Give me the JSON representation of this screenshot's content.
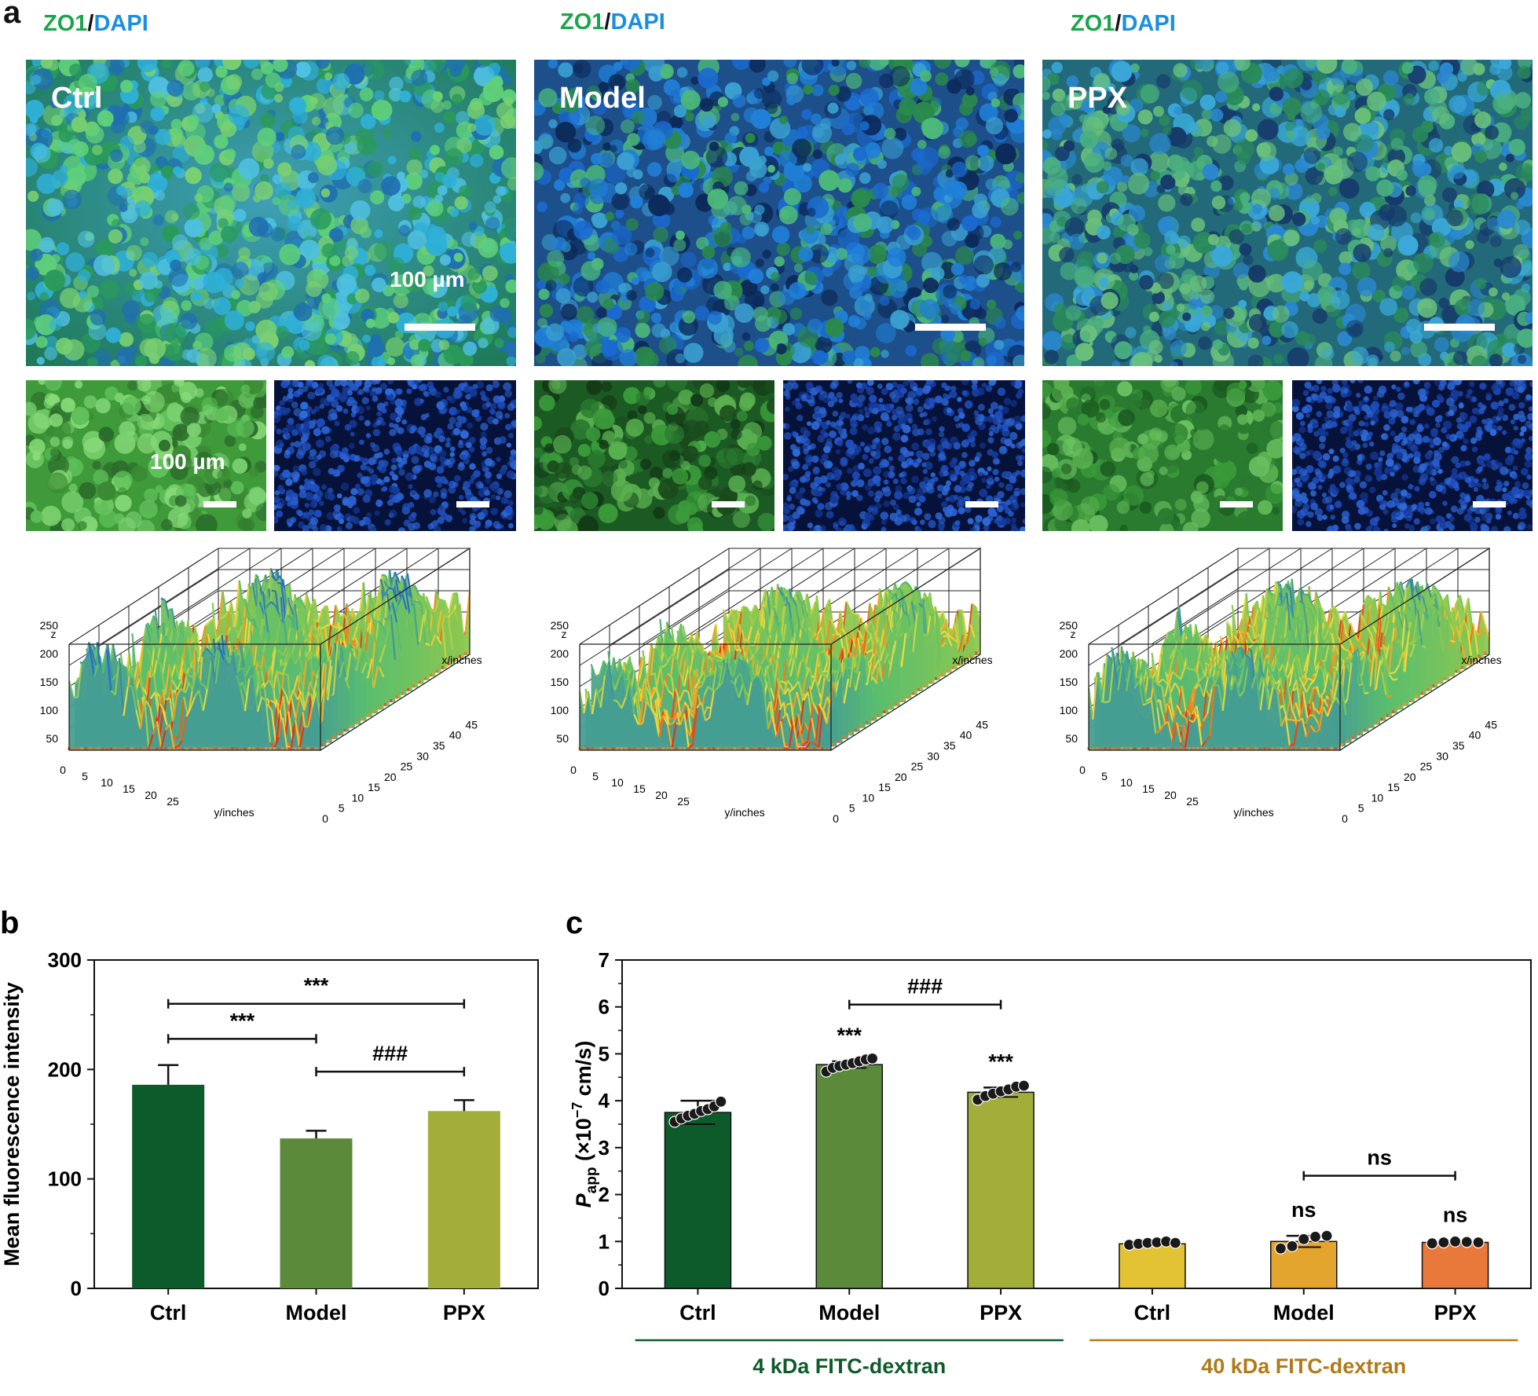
{
  "panel_a": {
    "letter": "a",
    "columns": [
      {
        "stain_zo1": "ZO1",
        "stain_sep": "/",
        "stain_dapi": "DAPI",
        "group": "Ctrl",
        "scale_text": "100 µm",
        "small_scale_text": "100 µm"
      },
      {
        "stain_zo1": "ZO1",
        "stain_sep": "/",
        "stain_dapi": "DAPI",
        "group": "Model"
      },
      {
        "stain_zo1": "ZO1",
        "stain_sep": "/",
        "stain_dapi": "DAPI",
        "group": "PPX"
      }
    ],
    "surface_axes": {
      "z_label": "z",
      "z_ticks": [
        "50",
        "100",
        "150",
        "200",
        "250"
      ],
      "x_label": "x/inches",
      "x_ticks": [
        "0",
        "5",
        "10",
        "15",
        "20",
        "25",
        "30",
        "35",
        "40",
        "45"
      ],
      "y_label": "y/inches",
      "y_ticks": [
        "0",
        "5",
        "10",
        "15",
        "20",
        "25"
      ]
    }
  },
  "chart_data": [
    {
      "id": "b",
      "letter": "b",
      "type": "bar",
      "title": "",
      "ylabel": "Mean fluorescence intensity",
      "xlabel": "",
      "ylim": [
        0,
        300
      ],
      "yticks": [
        "0",
        "100",
        "200",
        "300"
      ],
      "categories": [
        "Ctrl",
        "Model",
        "PPX"
      ],
      "values": [
        186,
        137,
        162
      ],
      "errors": [
        18,
        7,
        10
      ],
      "colors": [
        "#0d5a2a",
        "#5b8a3a",
        "#a3ad3a"
      ],
      "significance": [
        {
          "from": 0,
          "to": 2,
          "label": "***",
          "y": 260
        },
        {
          "from": 0,
          "to": 1,
          "label": "***",
          "y": 228
        },
        {
          "from": 1,
          "to": 2,
          "label": "###",
          "y": 198
        }
      ]
    },
    {
      "id": "c",
      "letter": "c",
      "type": "bar",
      "title": "",
      "ylabel_main": "P",
      "ylabel_sub": "app",
      "ylabel_rest": " (×10",
      "ylabel_sup": "−7",
      "ylabel_end": " cm/s)",
      "xlabel": "",
      "ylim": [
        0,
        7
      ],
      "yticks": [
        "0",
        "1",
        "2",
        "3",
        "4",
        "5",
        "6",
        "7"
      ],
      "categories": [
        "Ctrl",
        "Model",
        "PPX",
        "Ctrl",
        "Model",
        "PPX"
      ],
      "values": [
        3.75,
        4.77,
        4.18,
        0.95,
        1.0,
        0.98
      ],
      "errors": [
        0.25,
        0.07,
        0.1,
        0.03,
        0.12,
        0.03
      ],
      "colors": [
        "#0d5a2a",
        "#5b8a3a",
        "#a3ad3a",
        "#e3c234",
        "#e4a52f",
        "#e8793a"
      ],
      "points": [
        [
          3.55,
          3.62,
          3.68,
          3.72,
          3.78,
          3.82,
          3.88,
          3.98
        ],
        [
          4.62,
          4.7,
          4.74,
          4.77,
          4.8,
          4.84,
          4.88,
          4.9
        ],
        [
          4.02,
          4.1,
          4.15,
          4.2,
          4.24,
          4.3,
          4.32
        ],
        [
          0.93,
          0.95,
          0.97,
          0.98,
          1.0,
          0.97
        ],
        [
          0.85,
          0.9,
          1.05,
          1.1,
          1.12
        ],
        [
          0.96,
          0.98,
          1.0,
          0.99,
          0.98
        ]
      ],
      "annotations": [
        "",
        "***",
        "***",
        "",
        "ns",
        "ns"
      ],
      "significance": [
        {
          "from": 1,
          "to": 2,
          "label": "###",
          "y": 6.05
        },
        {
          "from": 4,
          "to": 5,
          "label": "ns",
          "y": 2.4
        }
      ],
      "groups": [
        {
          "label": "4 kDa FITC-dextran",
          "from": 0,
          "to": 2,
          "color": "#0d5a2a"
        },
        {
          "label": "40 kDa FITC-dextran",
          "from": 3,
          "to": 5,
          "color": "#b07a1a"
        }
      ]
    }
  ]
}
